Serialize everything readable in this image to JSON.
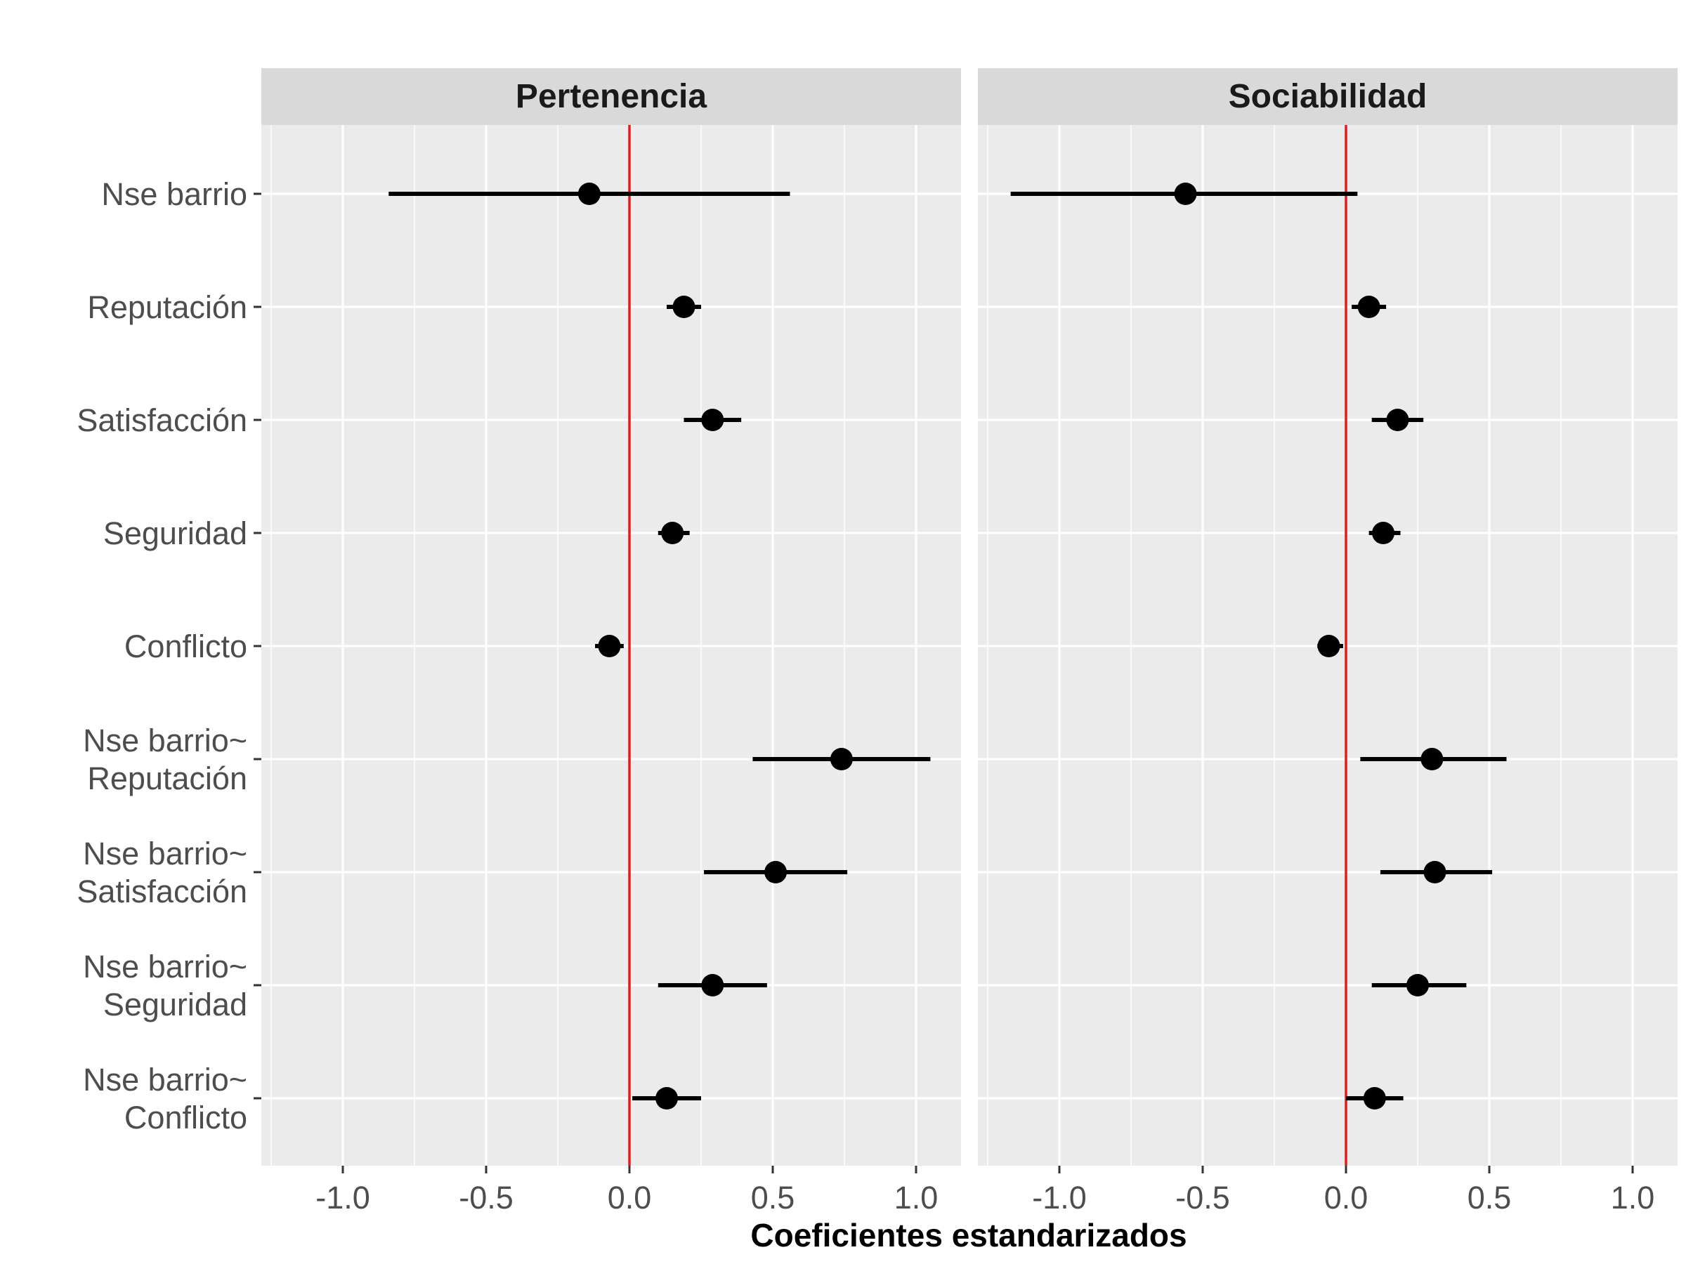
{
  "chart_data": {
    "type": "forest",
    "xlabel": "Coeficientes estandarizados",
    "ylabel": "",
    "xlim": [
      -1.25,
      1.16
    ],
    "x_ticks": [
      -1.0,
      -0.5,
      0.0,
      0.5,
      1.0
    ],
    "x_tick_labels": [
      "-1.0",
      "-0.5",
      "0.0",
      "0.5",
      "1.0"
    ],
    "reference_line": {
      "x": 0,
      "color": "#e41a1c"
    },
    "grid": true,
    "categories": [
      [
        "Nse barrio"
      ],
      [
        "Reputación"
      ],
      [
        "Satisfacción"
      ],
      [
        "Seguridad"
      ],
      [
        "Conflicto"
      ],
      [
        "Nse barrio~",
        "Reputación"
      ],
      [
        "Nse barrio~",
        "Satisfacción"
      ],
      [
        "Nse barrio~",
        "Seguridad"
      ],
      [
        "Nse barrio~",
        "Conflicto"
      ]
    ],
    "panels": [
      {
        "title": "Pertenencia",
        "points": [
          {
            "estimate": -0.14,
            "low": -0.84,
            "high": 0.56
          },
          {
            "estimate": 0.19,
            "low": 0.13,
            "high": 0.25
          },
          {
            "estimate": 0.29,
            "low": 0.19,
            "high": 0.39
          },
          {
            "estimate": 0.15,
            "low": 0.1,
            "high": 0.21
          },
          {
            "estimate": -0.07,
            "low": -0.12,
            "high": -0.02
          },
          {
            "estimate": 0.74,
            "low": 0.43,
            "high": 1.05
          },
          {
            "estimate": 0.51,
            "low": 0.26,
            "high": 0.76
          },
          {
            "estimate": 0.29,
            "low": 0.1,
            "high": 0.48
          },
          {
            "estimate": 0.13,
            "low": 0.01,
            "high": 0.25
          }
        ]
      },
      {
        "title": "Sociabilidad",
        "points": [
          {
            "estimate": -0.56,
            "low": -1.17,
            "high": 0.04
          },
          {
            "estimate": 0.08,
            "low": 0.02,
            "high": 0.14
          },
          {
            "estimate": 0.18,
            "low": 0.09,
            "high": 0.27
          },
          {
            "estimate": 0.13,
            "low": 0.08,
            "high": 0.19
          },
          {
            "estimate": -0.06,
            "low": -0.1,
            "high": -0.01
          },
          {
            "estimate": 0.3,
            "low": 0.05,
            "high": 0.56
          },
          {
            "estimate": 0.31,
            "low": 0.12,
            "high": 0.51
          },
          {
            "estimate": 0.25,
            "low": 0.09,
            "high": 0.42
          },
          {
            "estimate": 0.1,
            "low": 0.0,
            "high": 0.2
          }
        ]
      }
    ]
  }
}
